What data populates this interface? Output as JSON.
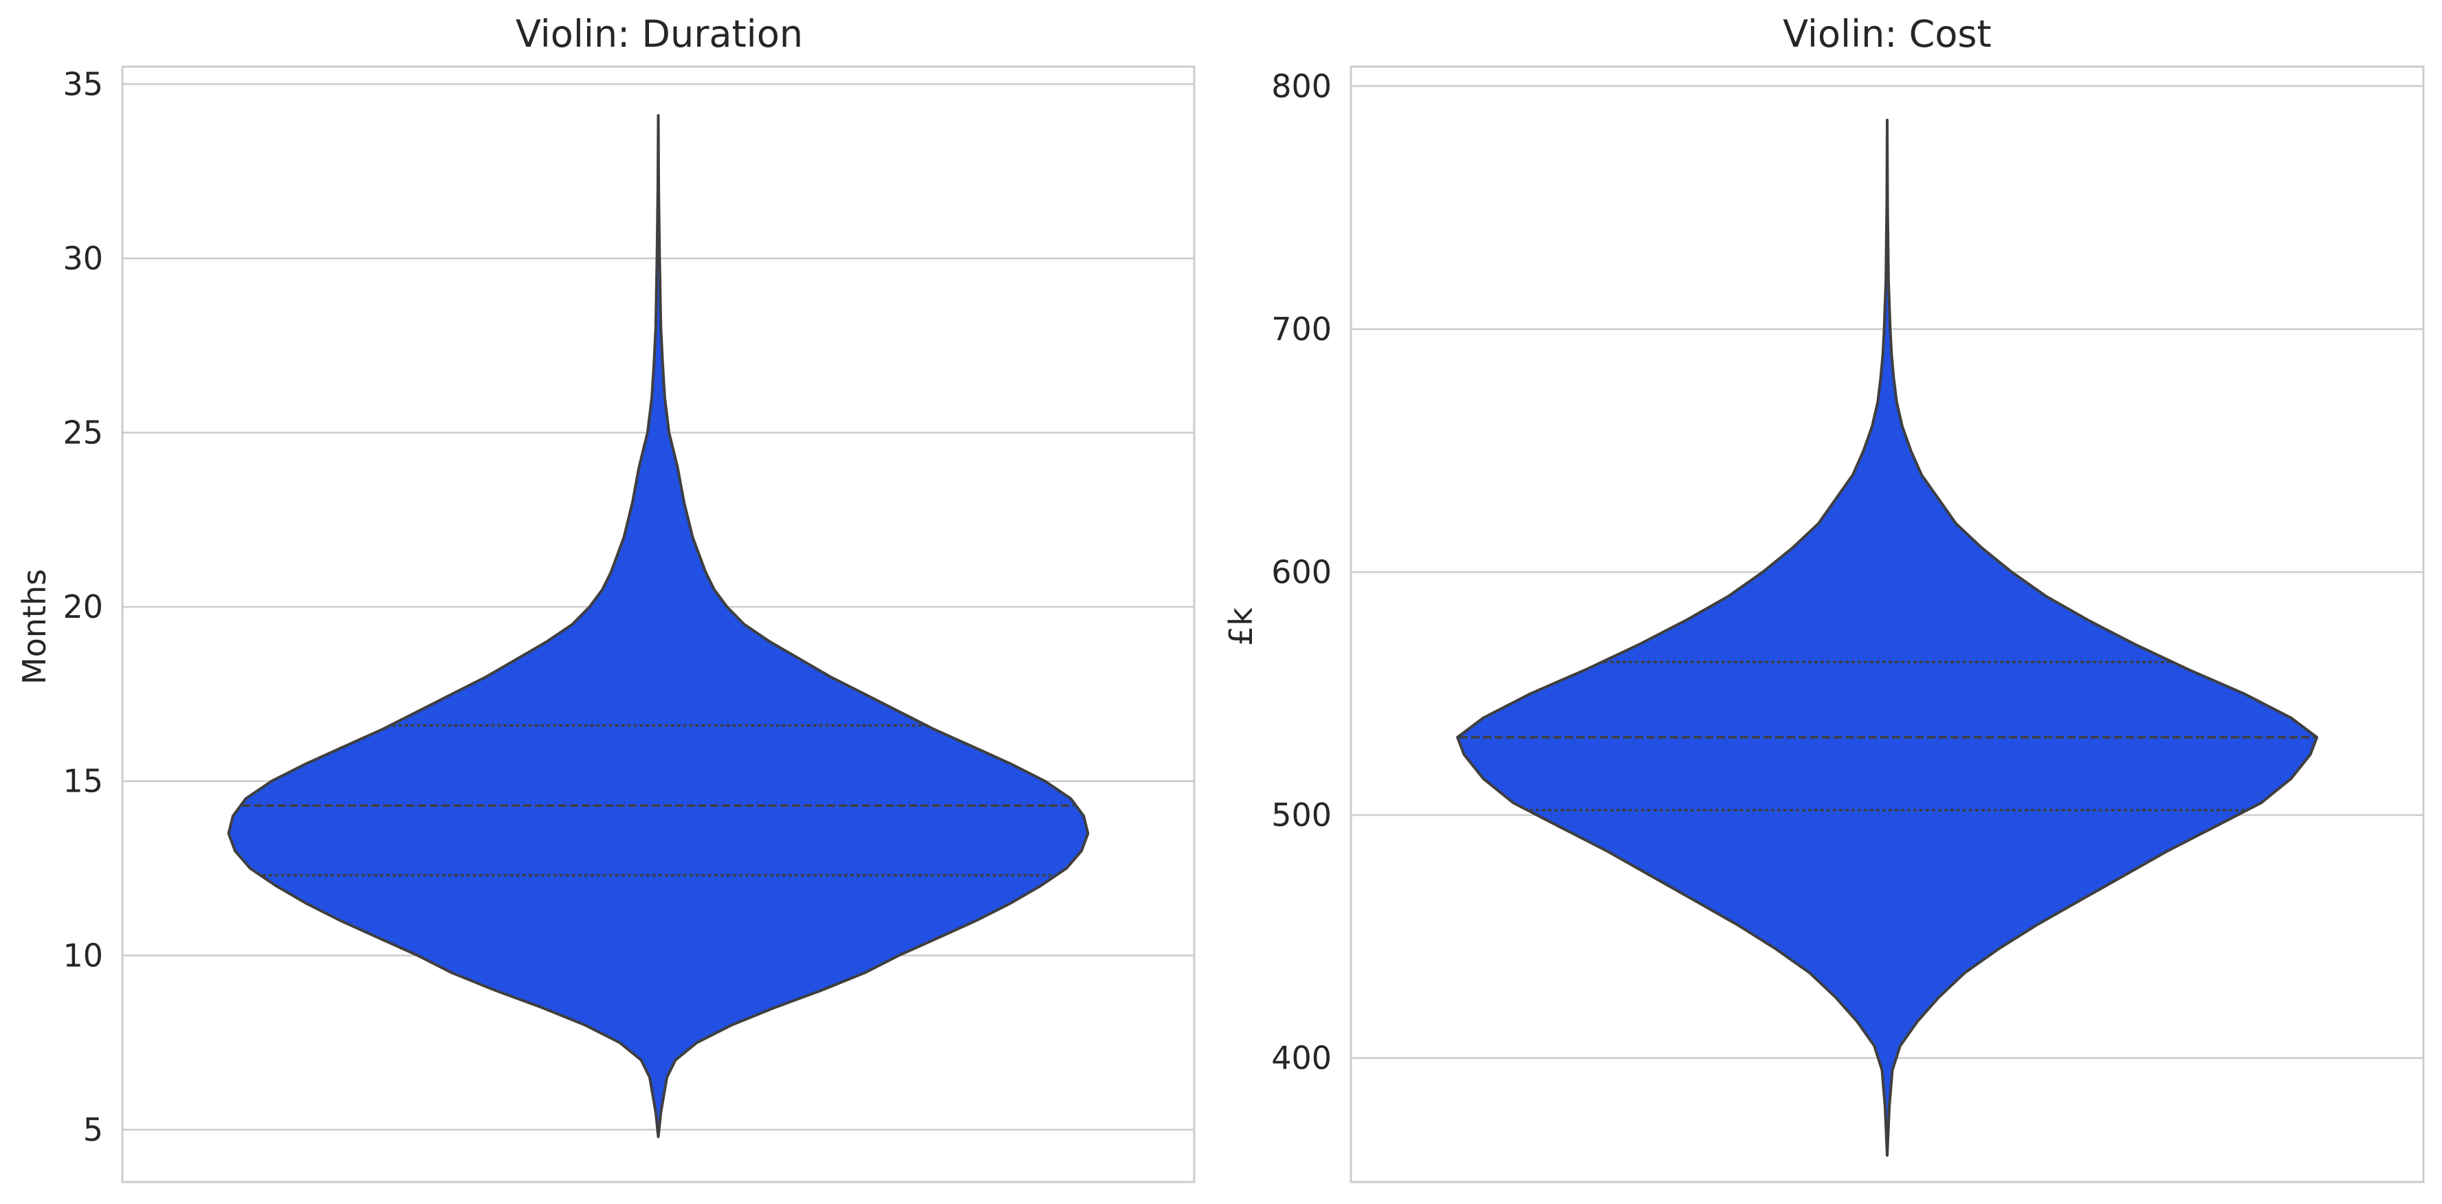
{
  "colors": {
    "violin_fill": "#2150E3",
    "violin_edge": "#3f3f3f",
    "grid": "#cccccc",
    "frame": "#cccccc",
    "text": "#262626",
    "background": "#ffffff"
  },
  "chart_data": [
    {
      "type": "violin",
      "title": "Violin: Duration",
      "xlabel": "",
      "ylabel": "Months",
      "ylim": [
        3.5,
        35.5
      ],
      "yticks": [
        5,
        10,
        15,
        20,
        25,
        30,
        35
      ],
      "ytick_labels": [
        "5",
        "10",
        "15",
        "20",
        "25",
        "30",
        "35"
      ],
      "grid": true,
      "quartiles": {
        "q1": 12.3,
        "median": 14.3,
        "q3": 16.6
      },
      "min": 4.8,
      "max": 34.1,
      "density_profile": [
        {
          "y": 4.8,
          "w": 0.0
        },
        {
          "y": 5.5,
          "w": 0.006
        },
        {
          "y": 6.5,
          "w": 0.02
        },
        {
          "y": 7.0,
          "w": 0.04
        },
        {
          "y": 7.5,
          "w": 0.09
        },
        {
          "y": 8.0,
          "w": 0.17
        },
        {
          "y": 8.5,
          "w": 0.27
        },
        {
          "y": 9.0,
          "w": 0.38
        },
        {
          "y": 9.5,
          "w": 0.48
        },
        {
          "y": 10.0,
          "w": 0.56
        },
        {
          "y": 10.5,
          "w": 0.65
        },
        {
          "y": 11.0,
          "w": 0.74
        },
        {
          "y": 11.5,
          "w": 0.82
        },
        {
          "y": 12.0,
          "w": 0.89
        },
        {
          "y": 12.5,
          "w": 0.95
        },
        {
          "y": 13.0,
          "w": 0.985
        },
        {
          "y": 13.5,
          "w": 1.0
        },
        {
          "y": 14.0,
          "w": 0.99
        },
        {
          "y": 14.5,
          "w": 0.96
        },
        {
          "y": 15.0,
          "w": 0.9
        },
        {
          "y": 15.5,
          "w": 0.82
        },
        {
          "y": 16.0,
          "w": 0.73
        },
        {
          "y": 16.5,
          "w": 0.64
        },
        {
          "y": 17.0,
          "w": 0.56
        },
        {
          "y": 17.5,
          "w": 0.48
        },
        {
          "y": 18.0,
          "w": 0.4
        },
        {
          "y": 18.5,
          "w": 0.33
        },
        {
          "y": 19.0,
          "w": 0.26
        },
        {
          "y": 19.5,
          "w": 0.2
        },
        {
          "y": 20.0,
          "w": 0.16
        },
        {
          "y": 20.5,
          "w": 0.13
        },
        {
          "y": 21.0,
          "w": 0.11
        },
        {
          "y": 22.0,
          "w": 0.08
        },
        {
          "y": 23.0,
          "w": 0.06
        },
        {
          "y": 24.0,
          "w": 0.045
        },
        {
          "y": 24.5,
          "w": 0.035
        },
        {
          "y": 25.0,
          "w": 0.025
        },
        {
          "y": 26.0,
          "w": 0.015
        },
        {
          "y": 27.0,
          "w": 0.01
        },
        {
          "y": 28.0,
          "w": 0.006
        },
        {
          "y": 30.0,
          "w": 0.003
        },
        {
          "y": 32.0,
          "w": 0.001
        },
        {
          "y": 34.1,
          "w": 0.0
        }
      ]
    },
    {
      "type": "violin",
      "title": "Violin: Cost",
      "xlabel": "",
      "ylabel": "£k",
      "ylim": [
        349,
        808
      ],
      "yticks": [
        400,
        500,
        600,
        700,
        800
      ],
      "ytick_labels": [
        "400",
        "500",
        "600",
        "700",
        "800"
      ],
      "grid": true,
      "quartiles": {
        "q1": 502,
        "median": 532,
        "q3": 563
      },
      "min": 360,
      "max": 786,
      "density_profile": [
        {
          "y": 360,
          "w": 0.0
        },
        {
          "y": 380,
          "w": 0.005
        },
        {
          "y": 395,
          "w": 0.012
        },
        {
          "y": 405,
          "w": 0.03
        },
        {
          "y": 415,
          "w": 0.07
        },
        {
          "y": 425,
          "w": 0.12
        },
        {
          "y": 435,
          "w": 0.18
        },
        {
          "y": 445,
          "w": 0.26
        },
        {
          "y": 455,
          "w": 0.35
        },
        {
          "y": 465,
          "w": 0.45
        },
        {
          "y": 475,
          "w": 0.55
        },
        {
          "y": 485,
          "w": 0.65
        },
        {
          "y": 495,
          "w": 0.76
        },
        {
          "y": 505,
          "w": 0.87
        },
        {
          "y": 515,
          "w": 0.94
        },
        {
          "y": 525,
          "w": 0.985
        },
        {
          "y": 532,
          "w": 1.0
        },
        {
          "y": 540,
          "w": 0.94
        },
        {
          "y": 550,
          "w": 0.83
        },
        {
          "y": 560,
          "w": 0.7
        },
        {
          "y": 570,
          "w": 0.58
        },
        {
          "y": 580,
          "w": 0.47
        },
        {
          "y": 590,
          "w": 0.37
        },
        {
          "y": 600,
          "w": 0.29
        },
        {
          "y": 610,
          "w": 0.22
        },
        {
          "y": 620,
          "w": 0.16
        },
        {
          "y": 630,
          "w": 0.12
        },
        {
          "y": 640,
          "w": 0.08
        },
        {
          "y": 650,
          "w": 0.055
        },
        {
          "y": 660,
          "w": 0.035
        },
        {
          "y": 670,
          "w": 0.022
        },
        {
          "y": 680,
          "w": 0.015
        },
        {
          "y": 690,
          "w": 0.01
        },
        {
          "y": 700,
          "w": 0.007
        },
        {
          "y": 720,
          "w": 0.003
        },
        {
          "y": 750,
          "w": 0.001
        },
        {
          "y": 786,
          "w": 0.0
        }
      ]
    }
  ]
}
